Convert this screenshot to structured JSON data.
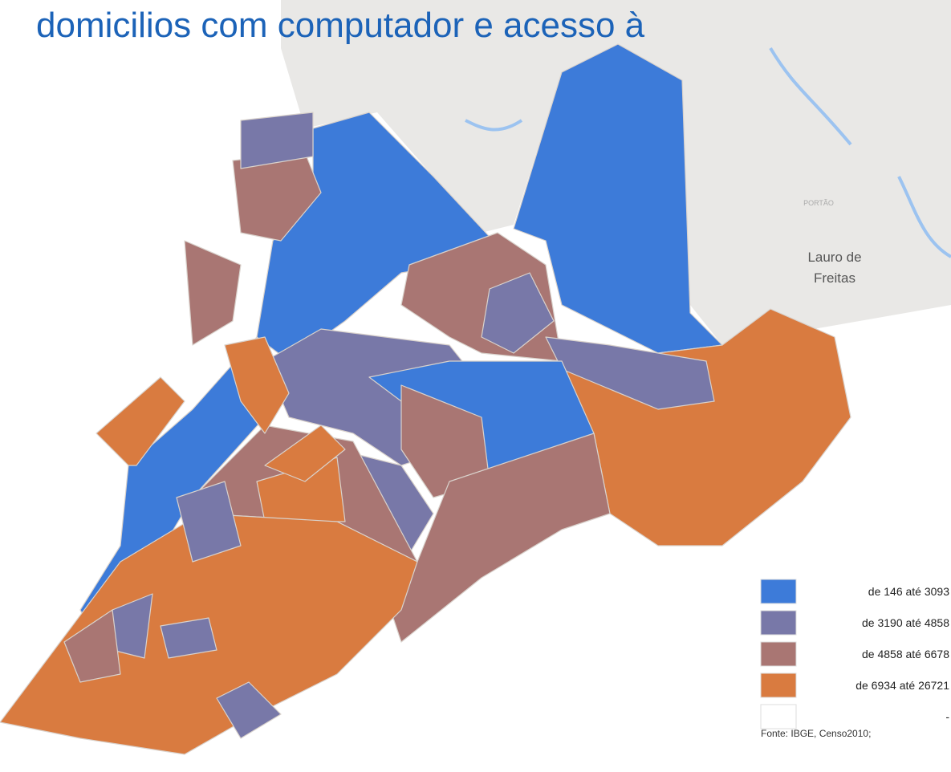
{
  "title": "domicilios com computador e acesso à",
  "places": {
    "small": "PORTÃO",
    "city": [
      "Lauro de",
      "Freitas"
    ]
  },
  "legend": [
    {
      "label": "de 146 até 3093",
      "color": "#3d7bd9"
    },
    {
      "label": "de 3190 até 4858",
      "color": "#7878a8"
    },
    {
      "label": "de 4858 até 6678",
      "color": "#a97673"
    },
    {
      "label": "de 6934 até 26721",
      "color": "#d97b40"
    },
    {
      "label": "-",
      "color": "#ffffff"
    }
  ],
  "source": "Fonte: IBGE, Censo2010;"
}
